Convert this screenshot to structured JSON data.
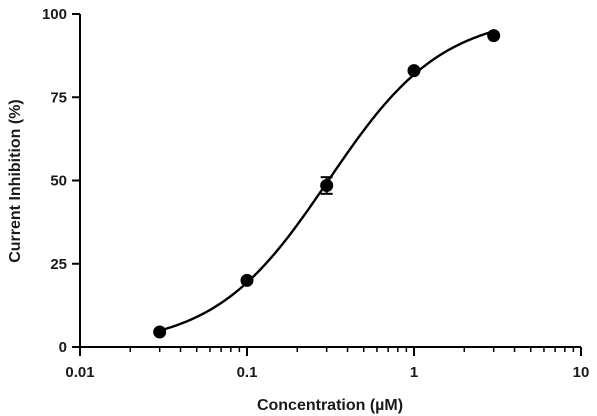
{
  "chart_data": {
    "type": "scatter",
    "title": "",
    "xlabel": "Concentration (µM)",
    "ylabel": "Current Inhibition (%)",
    "x_scale": "log",
    "xlim": [
      0.01,
      10
    ],
    "ylim": [
      0,
      100
    ],
    "x_ticks": [
      0.01,
      0.1,
      1,
      10
    ],
    "x_tick_labels": [
      "0.01",
      "0.1",
      "1",
      "10"
    ],
    "y_ticks": [
      0,
      25,
      50,
      75,
      100
    ],
    "y_tick_labels": [
      "0",
      "25",
      "50",
      "75",
      "100"
    ],
    "grid": false,
    "legend": "none",
    "series": [
      {
        "x": [
          0.03,
          0.1,
          0.3,
          1,
          3
        ],
        "y": [
          4.5,
          20,
          48.5,
          83,
          93.5
        ],
        "error": [
          0,
          0,
          2.5,
          0,
          0
        ],
        "fit": "sigmoidal dose-response",
        "color": "#000000"
      }
    ]
  }
}
